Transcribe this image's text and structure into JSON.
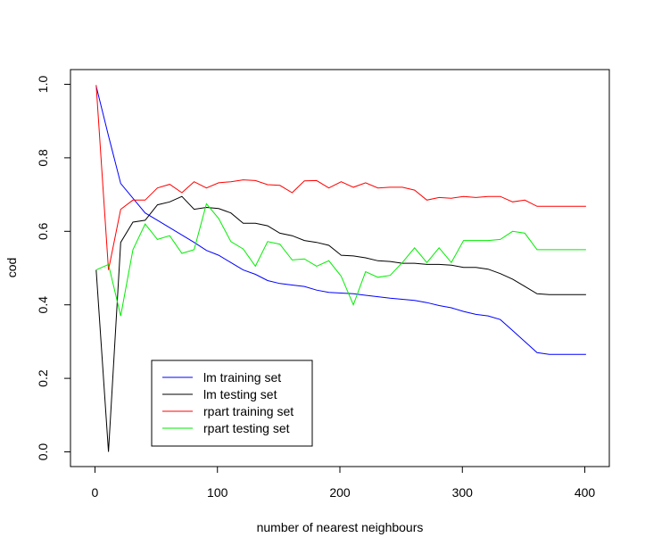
{
  "chart_data": {
    "type": "line",
    "title": "",
    "xlabel": "number of nearest neighbours",
    "ylabel": "cod",
    "xlim": [
      -20,
      420
    ],
    "ylim": [
      -0.04,
      1.04
    ],
    "x_ticks": [
      0,
      100,
      200,
      300,
      400
    ],
    "x_tick_labels": [
      "0",
      "100",
      "200",
      "300",
      "400"
    ],
    "y_ticks": [
      0.0,
      0.2,
      0.4,
      0.6,
      0.8,
      1.0
    ],
    "y_tick_labels": [
      "0.0",
      "0.2",
      "0.4",
      "0.6",
      "0.8",
      "1.0"
    ],
    "grid": false,
    "legend_position": "bottom-left",
    "x": [
      1,
      11,
      21,
      31,
      41,
      51,
      61,
      71,
      81,
      91,
      101,
      111,
      121,
      131,
      141,
      151,
      161,
      171,
      181,
      191,
      201,
      211,
      221,
      231,
      241,
      251,
      261,
      271,
      281,
      291,
      301,
      311,
      321,
      331,
      341,
      351,
      361,
      371,
      381,
      391,
      401
    ],
    "series": [
      {
        "name": "lm training set",
        "color": "#0000ff",
        "values": [
          0.995,
          0.86,
          0.73,
          0.69,
          0.65,
          0.63,
          0.61,
          0.59,
          0.57,
          0.548,
          0.535,
          0.515,
          0.495,
          0.483,
          0.466,
          0.458,
          0.454,
          0.45,
          0.44,
          0.434,
          0.432,
          0.43,
          0.426,
          0.422,
          0.418,
          0.415,
          0.412,
          0.406,
          0.398,
          0.392,
          0.382,
          0.374,
          0.37,
          0.36,
          0.33,
          0.3,
          0.27,
          0.265,
          0.265,
          0.265,
          0.265
        ]
      },
      {
        "name": "lm testing set",
        "color": "#000000",
        "values": [
          0.495,
          0.0,
          0.57,
          0.625,
          0.63,
          0.672,
          0.68,
          0.695,
          0.66,
          0.665,
          0.662,
          0.65,
          0.622,
          0.622,
          0.615,
          0.595,
          0.588,
          0.575,
          0.57,
          0.562,
          0.535,
          0.533,
          0.528,
          0.52,
          0.518,
          0.513,
          0.513,
          0.51,
          0.51,
          0.508,
          0.502,
          0.502,
          0.497,
          0.485,
          0.47,
          0.45,
          0.43,
          0.428,
          0.428,
          0.428,
          0.428
        ]
      },
      {
        "name": "rpart training set",
        "color": "#ff0000",
        "values": [
          0.998,
          0.495,
          0.66,
          0.685,
          0.685,
          0.718,
          0.728,
          0.705,
          0.735,
          0.718,
          0.732,
          0.735,
          0.74,
          0.738,
          0.727,
          0.725,
          0.705,
          0.737,
          0.738,
          0.718,
          0.735,
          0.72,
          0.732,
          0.718,
          0.72,
          0.72,
          0.712,
          0.685,
          0.692,
          0.69,
          0.695,
          0.692,
          0.695,
          0.695,
          0.68,
          0.685,
          0.668,
          0.668,
          0.668,
          0.668,
          0.668
        ]
      },
      {
        "name": "rpart testing set",
        "color": "#00ee00",
        "values": [
          0.495,
          0.51,
          0.37,
          0.55,
          0.62,
          0.578,
          0.588,
          0.54,
          0.55,
          0.675,
          0.635,
          0.572,
          0.552,
          0.505,
          0.572,
          0.565,
          0.522,
          0.525,
          0.505,
          0.52,
          0.478,
          0.4,
          0.49,
          0.475,
          0.48,
          0.515,
          0.555,
          0.515,
          0.555,
          0.515,
          0.575,
          0.575,
          0.575,
          0.578,
          0.6,
          0.595,
          0.55,
          0.55,
          0.55,
          0.55,
          0.55
        ]
      }
    ]
  }
}
